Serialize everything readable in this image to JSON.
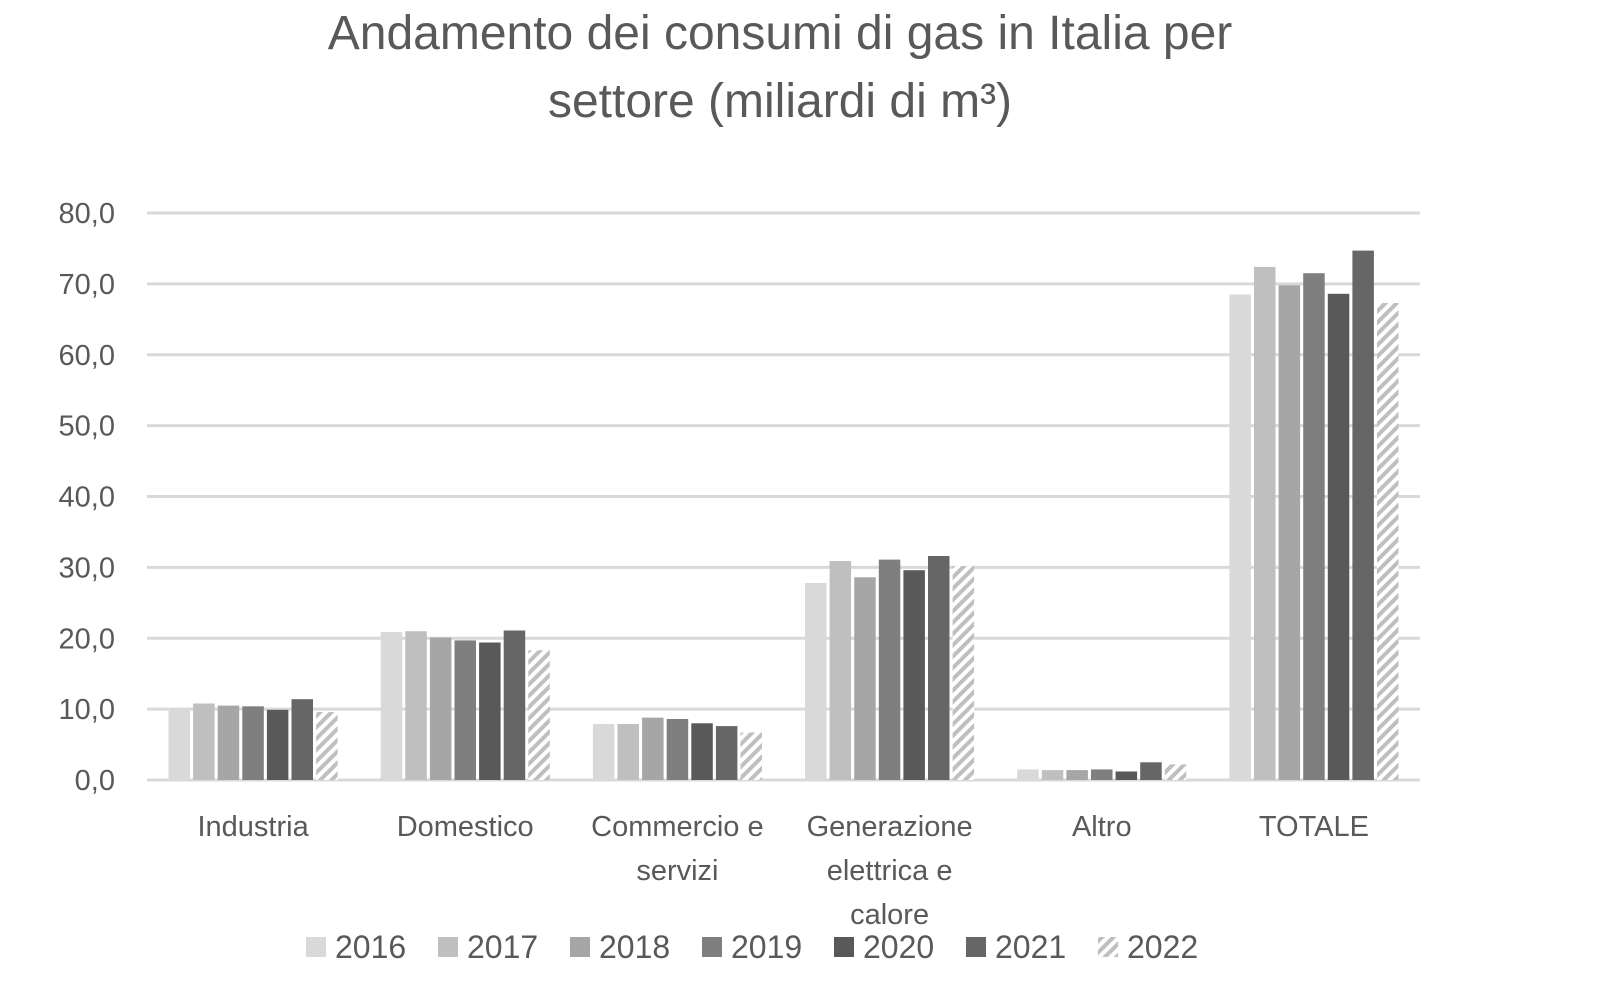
{
  "chart_data": {
    "type": "bar",
    "title": [
      "Andamento dei consumi di gas in Italia per",
      "settore  (miliardi di m³)"
    ],
    "categories": [
      [
        "Industria"
      ],
      [
        "Domestico"
      ],
      [
        "Commercio e",
        "servizi"
      ],
      [
        "Generazione",
        "elettrica e",
        "calore"
      ],
      [
        "Altro"
      ],
      [
        "TOTALE"
      ]
    ],
    "series": [
      {
        "name": "2016",
        "color": "#d9d9d9",
        "values": [
          10.1,
          20.9,
          7.9,
          27.8,
          1.5,
          68.5
        ]
      },
      {
        "name": "2017",
        "color": "#bfbfbf",
        "values": [
          10.8,
          21.0,
          7.9,
          30.9,
          1.4,
          72.4
        ]
      },
      {
        "name": "2018",
        "color": "#a6a6a6",
        "values": [
          10.5,
          20.1,
          8.8,
          28.6,
          1.4,
          69.8
        ]
      },
      {
        "name": "2019",
        "color": "#7f7f7f",
        "values": [
          10.4,
          19.7,
          8.6,
          31.1,
          1.5,
          71.5
        ]
      },
      {
        "name": "2020",
        "color": "#595959",
        "values": [
          9.9,
          19.4,
          8.0,
          29.6,
          1.2,
          68.6
        ]
      },
      {
        "name": "2021",
        "color": "#666666",
        "values": [
          11.4,
          21.1,
          7.6,
          31.6,
          2.5,
          74.7
        ]
      },
      {
        "name": "2022",
        "color": "#bfbfbf",
        "pattern": "diagonal-hatch",
        "values": [
          9.6,
          18.3,
          6.7,
          30.2,
          2.2,
          67.3
        ]
      }
    ],
    "y_ticks": [
      "0,0",
      "10,0",
      "20,0",
      "30,0",
      "40,0",
      "50,0",
      "60,0",
      "70,0",
      "80,0"
    ],
    "ylim": [
      0,
      80
    ],
    "grid": true,
    "legend_position": "bottom"
  }
}
